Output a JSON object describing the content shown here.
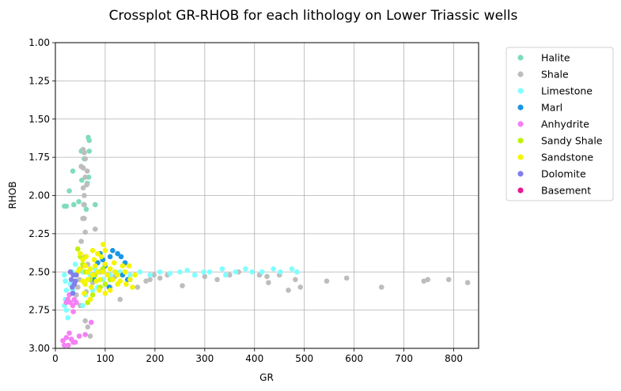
{
  "chart_data": {
    "type": "scatter",
    "title": "Crossplot GR-RHOB for each lithology on Lower Triassic wells",
    "xlabel": "GR",
    "ylabel": "RHOB",
    "xlim": [
      0,
      850
    ],
    "ylim": [
      3.0,
      1.0
    ],
    "y_inverted": true,
    "x_ticks": [
      "0",
      "100",
      "200",
      "300",
      "400",
      "500",
      "600",
      "700",
      "800"
    ],
    "y_ticks": [
      "1.00",
      "1.25",
      "1.50",
      "1.75",
      "2.00",
      "2.25",
      "2.50",
      "2.75",
      "3.00"
    ],
    "grid": true,
    "legend_position": "outside right, top",
    "series": [
      {
        "name": "Halite",
        "color": "#7fdcbe",
        "points": [
          [
            66,
            1.62
          ],
          [
            68,
            1.64
          ],
          [
            52,
            1.71
          ],
          [
            68,
            1.71
          ],
          [
            58,
            1.76
          ],
          [
            55,
            1.7
          ],
          [
            35,
            1.84
          ],
          [
            67,
            1.88
          ],
          [
            64,
            1.92
          ],
          [
            53,
            1.9
          ],
          [
            28,
            1.97
          ],
          [
            37,
            2.06
          ],
          [
            18,
            2.07
          ],
          [
            22,
            2.07
          ],
          [
            47,
            2.04
          ],
          [
            80,
            2.06
          ],
          [
            58,
            2.06
          ],
          [
            62,
            2.09
          ]
        ]
      },
      {
        "name": "Shale",
        "color": "#bdbdbd",
        "points": [
          [
            56,
            1.7
          ],
          [
            58,
            1.72
          ],
          [
            52,
            1.81
          ],
          [
            60,
            1.76
          ],
          [
            56,
            1.82
          ],
          [
            64,
            1.84
          ],
          [
            60,
            1.88
          ],
          [
            63,
            1.93
          ],
          [
            56,
            1.95
          ],
          [
            58,
            2.0
          ],
          [
            57,
            2.06
          ],
          [
            55,
            2.15
          ],
          [
            58,
            2.15
          ],
          [
            60,
            2.24
          ],
          [
            52,
            2.3
          ],
          [
            80,
            2.22
          ],
          [
            60,
            2.4
          ],
          [
            56,
            2.46
          ],
          [
            65,
            2.45
          ],
          [
            90,
            2.5
          ],
          [
            120,
            2.53
          ],
          [
            150,
            2.55
          ],
          [
            165,
            2.6
          ],
          [
            182,
            2.56
          ],
          [
            190,
            2.55
          ],
          [
            198,
            2.52
          ],
          [
            210,
            2.54
          ],
          [
            225,
            2.52
          ],
          [
            255,
            2.59
          ],
          [
            280,
            2.52
          ],
          [
            300,
            2.53
          ],
          [
            325,
            2.55
          ],
          [
            350,
            2.52
          ],
          [
            368,
            2.5
          ],
          [
            410,
            2.52
          ],
          [
            425,
            2.53
          ],
          [
            428,
            2.57
          ],
          [
            450,
            2.52
          ],
          [
            468,
            2.62
          ],
          [
            482,
            2.55
          ],
          [
            492,
            2.6
          ],
          [
            545,
            2.56
          ],
          [
            585,
            2.54
          ],
          [
            655,
            2.6
          ],
          [
            740,
            2.56
          ],
          [
            748,
            2.55
          ],
          [
            790,
            2.55
          ],
          [
            828,
            2.57
          ],
          [
            130,
            2.68
          ],
          [
            60,
            2.82
          ],
          [
            65,
            2.86
          ],
          [
            70,
            2.92
          ],
          [
            50,
            2.72
          ],
          [
            45,
            2.6
          ],
          [
            42,
            2.65
          ],
          [
            48,
            2.55
          ],
          [
            55,
            2.5
          ],
          [
            62,
            2.63
          ],
          [
            75,
            2.57
          ],
          [
            100,
            2.45
          ],
          [
            110,
            2.6
          ],
          [
            140,
            2.5
          ]
        ]
      },
      {
        "name": "Limestone",
        "color": "#80ffff",
        "points": [
          [
            18,
            2.52
          ],
          [
            20,
            2.56
          ],
          [
            22,
            2.62
          ],
          [
            20,
            2.68
          ],
          [
            18,
            2.72
          ],
          [
            22,
            2.75
          ],
          [
            25,
            2.8
          ],
          [
            30,
            2.58
          ],
          [
            34,
            2.5
          ],
          [
            40,
            2.45
          ],
          [
            48,
            2.48
          ],
          [
            56,
            2.5
          ],
          [
            70,
            2.52
          ],
          [
            80,
            2.48
          ],
          [
            95,
            2.55
          ],
          [
            110,
            2.52
          ],
          [
            130,
            2.5
          ],
          [
            150,
            2.52
          ],
          [
            170,
            2.5
          ],
          [
            190,
            2.52
          ],
          [
            210,
            2.5
          ],
          [
            230,
            2.51
          ],
          [
            250,
            2.5
          ],
          [
            265,
            2.49
          ],
          [
            280,
            2.52
          ],
          [
            298,
            2.5
          ],
          [
            310,
            2.5
          ],
          [
            335,
            2.48
          ],
          [
            342,
            2.52
          ],
          [
            362,
            2.5
          ],
          [
            382,
            2.48
          ],
          [
            395,
            2.5
          ],
          [
            415,
            2.5
          ],
          [
            438,
            2.48
          ],
          [
            452,
            2.5
          ],
          [
            475,
            2.48
          ],
          [
            485,
            2.5
          ],
          [
            35,
            2.62
          ],
          [
            42,
            2.7
          ],
          [
            55,
            2.72
          ],
          [
            60,
            2.65
          ],
          [
            75,
            2.62
          ],
          [
            85,
            2.6
          ]
        ]
      },
      {
        "name": "Marl",
        "color": "#1996e6",
        "points": [
          [
            90,
            2.38
          ],
          [
            95,
            2.42
          ],
          [
            110,
            2.4
          ],
          [
            115,
            2.36
          ],
          [
            125,
            2.38
          ],
          [
            132,
            2.4
          ],
          [
            140,
            2.44
          ],
          [
            100,
            2.46
          ],
          [
            85,
            2.44
          ],
          [
            120,
            2.5
          ],
          [
            135,
            2.52
          ],
          [
            145,
            2.55
          ],
          [
            78,
            2.55
          ],
          [
            108,
            2.6
          ]
        ]
      },
      {
        "name": "Anhydrite",
        "color": "#f57ff5",
        "points": [
          [
            15,
            2.95
          ],
          [
            18,
            2.98
          ],
          [
            22,
            2.93
          ],
          [
            28,
            2.9
          ],
          [
            32,
            2.94
          ],
          [
            36,
            2.96
          ],
          [
            26,
            2.98
          ],
          [
            40,
            2.96
          ],
          [
            48,
            2.92
          ],
          [
            60,
            2.91
          ],
          [
            72,
            2.83
          ],
          [
            25,
            2.68
          ],
          [
            30,
            2.7
          ],
          [
            35,
            2.72
          ],
          [
            22,
            2.7
          ],
          [
            38,
            2.68
          ],
          [
            28,
            2.65
          ],
          [
            42,
            2.7
          ],
          [
            36,
            2.76
          ]
        ]
      },
      {
        "name": "Sandy Shale",
        "color": "#bff20a",
        "points": [
          [
            45,
            2.35
          ],
          [
            50,
            2.4
          ],
          [
            55,
            2.45
          ],
          [
            60,
            2.5
          ],
          [
            70,
            2.55
          ],
          [
            80,
            2.52
          ],
          [
            90,
            2.6
          ],
          [
            100,
            2.58
          ],
          [
            75,
            2.65
          ],
          [
            65,
            2.7
          ],
          [
            110,
            2.55
          ],
          [
            95,
            2.48
          ]
        ]
      },
      {
        "name": "Sandstone",
        "color": "#f5f500",
        "points": [
          [
            50,
            2.38
          ],
          [
            55,
            2.42
          ],
          [
            60,
            2.46
          ],
          [
            65,
            2.5
          ],
          [
            70,
            2.48
          ],
          [
            75,
            2.52
          ],
          [
            80,
            2.46
          ],
          [
            85,
            2.5
          ],
          [
            90,
            2.55
          ],
          [
            95,
            2.5
          ],
          [
            100,
            2.45
          ],
          [
            105,
            2.52
          ],
          [
            110,
            2.48
          ],
          [
            115,
            2.55
          ],
          [
            120,
            2.5
          ],
          [
            125,
            2.52
          ],
          [
            130,
            2.56
          ],
          [
            140,
            2.5
          ],
          [
            150,
            2.55
          ],
          [
            155,
            2.6
          ],
          [
            160,
            2.52
          ],
          [
            60,
            2.58
          ],
          [
            72,
            2.6
          ],
          [
            88,
            2.62
          ],
          [
            100,
            2.64
          ],
          [
            78,
            2.42
          ],
          [
            92,
            2.4
          ],
          [
            100,
            2.36
          ],
          [
            70,
            2.68
          ],
          [
            55,
            2.56
          ],
          [
            45,
            2.5
          ],
          [
            58,
            2.64
          ],
          [
            110,
            2.62
          ],
          [
            125,
            2.58
          ],
          [
            135,
            2.46
          ],
          [
            85,
            2.38
          ],
          [
            50,
            2.48
          ],
          [
            62,
            2.4
          ],
          [
            96,
            2.32
          ],
          [
            65,
            2.55
          ],
          [
            82,
            2.56
          ],
          [
            118,
            2.44
          ],
          [
            142,
            2.58
          ],
          [
            148,
            2.46
          ],
          [
            75,
            2.36
          ]
        ]
      },
      {
        "name": "Dolomite",
        "color": "#8080eb",
        "points": [
          [
            30,
            2.5
          ],
          [
            32,
            2.55
          ],
          [
            34,
            2.6
          ],
          [
            36,
            2.52
          ],
          [
            38,
            2.58
          ],
          [
            40,
            2.56
          ],
          [
            35,
            2.64
          ],
          [
            42,
            2.52
          ]
        ]
      },
      {
        "name": "Basement",
        "color": "#eb1991",
        "points": []
      }
    ]
  }
}
